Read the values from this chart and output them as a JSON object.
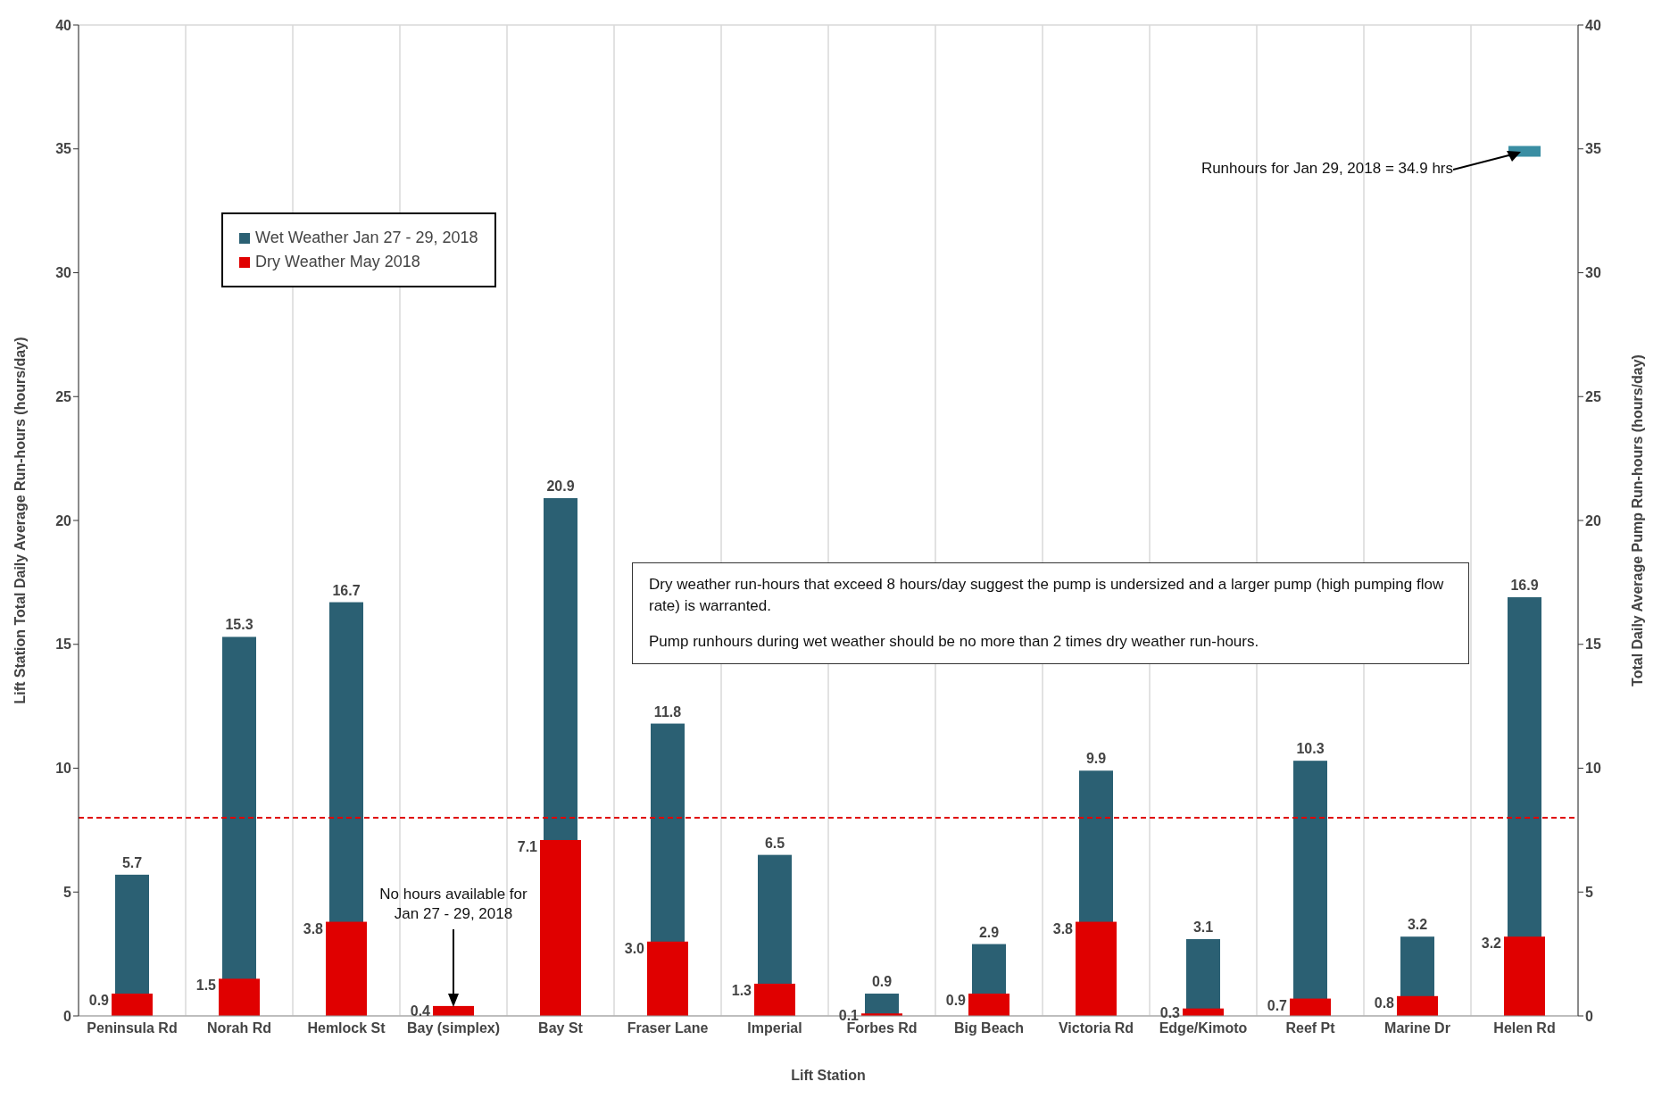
{
  "chart_data": {
    "type": "bar",
    "xlabel": "Lift Station",
    "ylabel": "Lift Station Total Daily Average Run-hours (hours/day)",
    "y2label": "Total Daily Average Pump Run-hours (hours/day)",
    "categories": [
      "Peninsula Rd",
      "Norah Rd",
      "Hemlock St",
      "Bay (simplex)",
      "Bay St",
      "Fraser Lane",
      "Imperial",
      "Forbes Rd",
      "Big Beach",
      "Victoria Rd",
      "Edge/Kimoto",
      "Reef Pt",
      "Marine Dr",
      "Helen Rd"
    ],
    "series": [
      {
        "name": "Wet Weather Jan 27 - 29, 2018",
        "color": "#2b6073",
        "values": [
          5.7,
          15.3,
          16.7,
          null,
          20.9,
          11.8,
          6.5,
          0.9,
          2.9,
          9.9,
          3.1,
          10.3,
          3.2,
          16.9
        ],
        "value_labels": [
          "5.7",
          "15.3",
          "16.7",
          null,
          "20.9",
          "11.8",
          "6.5",
          "0.9",
          "2.9",
          "9.9",
          "3.1",
          "10.3",
          "3.2",
          "16.9"
        ]
      },
      {
        "name": "Dry Weather May 2018",
        "color": "#e00000",
        "values": [
          0.9,
          1.5,
          3.8,
          0.4,
          7.1,
          3.0,
          1.3,
          0.1,
          0.9,
          3.8,
          0.3,
          0.7,
          0.8,
          3.2
        ],
        "value_labels": [
          "0.9",
          "1.5",
          "3.8",
          "0.4",
          "7.1",
          "3.0",
          "1.3",
          "0.1",
          "0.9",
          "3.8",
          "0.3",
          "0.7",
          "0.8",
          "3.2"
        ]
      },
      {
        "type": "scatter",
        "marker": "square",
        "color": "#3a8ea3",
        "x": [
          "Helen Rd"
        ],
        "values": [
          34.9
        ]
      }
    ],
    "ylim": [
      0,
      40
    ],
    "yticks": [
      0,
      5,
      10,
      15,
      20,
      25,
      30,
      35,
      40
    ],
    "y2lim": [
      0,
      40
    ],
    "y2ticks": [
      0,
      5,
      10,
      15,
      20,
      25,
      30,
      35,
      40
    ],
    "ref_lines": [
      {
        "axis": "y",
        "value": 8,
        "color": "#e00000",
        "line_style": "dashed"
      }
    ],
    "annotations": [
      "Dry weather run-hours that exceed 8 hours/day suggest the pump is undersized and a larger pump (high pumping flow rate) is warranted.",
      "Pump runhours during wet weather should be no more than 2 times dry weather run-hours.",
      {
        "text": "No hours available for Jan 27 - 29, 2018",
        "x": "Bay (simplex)",
        "y": 0.4
      },
      {
        "text": "Runhours for Jan 29, 2018 = 34.9 hrs",
        "x": "Helen Rd",
        "y": 34.9
      }
    ],
    "grid": true,
    "legend": "top left"
  }
}
